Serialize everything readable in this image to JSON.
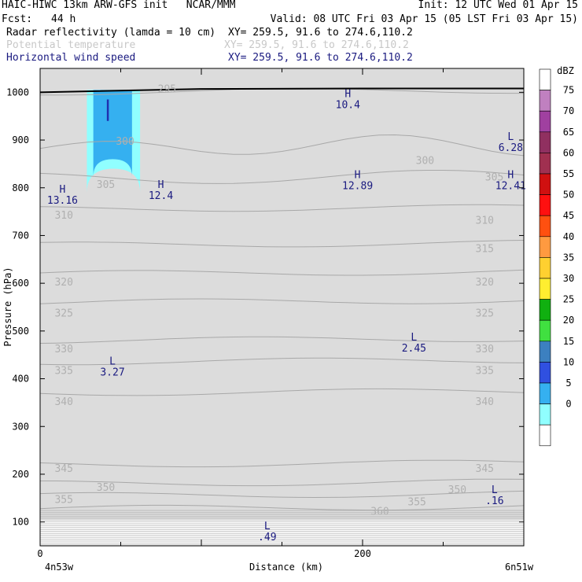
{
  "header": {
    "title_left": "HAIC-HIWC 13km ARW-GFS init   NCAR/MMM",
    "init": "Init: 12 UTC Wed 01 Apr 15",
    "fcst_label": "Fcst:",
    "fcst_value": "44 h",
    "valid": "Valid: 08 UTC Fri 03 Apr 15 (05 LST Fri 03 Apr 15)",
    "fields": [
      {
        "name": "Radar reflectivity (lamda = 10 cm)",
        "xy": "XY= 259.5, 91.6 to 274.6,110.2",
        "color": "#000000"
      },
      {
        "name": "Potential temperature",
        "xy": "XY= 259.5, 91.6 to 274.6,110.2",
        "color": "#c8c8c8"
      },
      {
        "name": "Horizontal wind speed",
        "xy": "XY= 259.5, 91.6 to 274.6,110.2",
        "color": "#1a1a80"
      }
    ]
  },
  "chart_data": {
    "type": "cross-section",
    "ylabel": "Pressure (hPa)",
    "xlabel": "Distance (km)",
    "x_start_label": "4n53w",
    "x_end_label": "6n51w",
    "xlim": [
      0,
      300
    ],
    "ylim": [
      1050,
      50
    ],
    "x_ticks": [
      0,
      200
    ],
    "y_ticks": [
      100,
      200,
      300,
      400,
      500,
      600,
      700,
      800,
      900,
      1000
    ],
    "colorbar": {
      "unit": "dBZ",
      "levels": [
        75,
        70,
        65,
        60,
        55,
        50,
        45,
        40,
        35,
        30,
        25,
        20,
        15,
        10,
        5,
        0
      ],
      "colors": [
        "#ffffff",
        "#c080c0",
        "#a040a0",
        "#903060",
        "#a03050",
        "#d01010",
        "#ff1010",
        "#ff5010",
        "#ff9a40",
        "#ffd030",
        "#ffee30",
        "#10b010",
        "#40e040",
        "#3c80c0",
        "#3050e0",
        "#35b0f0",
        "#90ffff",
        "#ffffff"
      ]
    },
    "theta_contours": [
      {
        "value": 360,
        "p": 128
      },
      {
        "value": 355,
        "p": 155
      },
      {
        "value": 350,
        "p": 180
      },
      {
        "value": 345,
        "p": 220
      },
      {
        "value": 340,
        "p": 370
      },
      {
        "value": 335,
        "p": 435
      },
      {
        "value": 330,
        "p": 480
      },
      {
        "value": 325,
        "p": 560
      },
      {
        "value": 320,
        "p": 620
      },
      {
        "value": 315,
        "p": 680
      },
      {
        "value": 310,
        "p": 755
      },
      {
        "value": 305,
        "p": 820
      },
      {
        "value": 300,
        "p": 885
      },
      {
        "value": 295,
        "p": 1000
      }
    ],
    "theta_labels": [
      {
        "text": "360",
        "x": 205,
        "p": 115
      },
      {
        "text": "355",
        "x": 9,
        "p": 140
      },
      {
        "text": "355",
        "x": 228,
        "p": 135
      },
      {
        "text": "350",
        "x": 35,
        "p": 165
      },
      {
        "text": "350",
        "x": 253,
        "p": 160
      },
      {
        "text": "345",
        "x": 9,
        "p": 205
      },
      {
        "text": "345",
        "x": 270,
        "p": 205
      },
      {
        "text": "340",
        "x": 9,
        "p": 345
      },
      {
        "text": "340",
        "x": 270,
        "p": 345
      },
      {
        "text": "335",
        "x": 9,
        "p": 410
      },
      {
        "text": "335",
        "x": 270,
        "p": 410
      },
      {
        "text": "330",
        "x": 9,
        "p": 455
      },
      {
        "text": "330",
        "x": 270,
        "p": 455
      },
      {
        "text": "325",
        "x": 9,
        "p": 530
      },
      {
        "text": "325",
        "x": 270,
        "p": 530
      },
      {
        "text": "320",
        "x": 9,
        "p": 595
      },
      {
        "text": "320",
        "x": 270,
        "p": 595
      },
      {
        "text": "315",
        "x": 270,
        "p": 665
      },
      {
        "text": "310",
        "x": 9,
        "p": 735
      },
      {
        "text": "310",
        "x": 270,
        "p": 725
      },
      {
        "text": "305",
        "x": 35,
        "p": 800
      },
      {
        "text": "305",
        "x": 276,
        "p": 815
      },
      {
        "text": "300",
        "x": 47,
        "p": 890
      },
      {
        "text": "300",
        "x": 233,
        "p": 850
      },
      {
        "text": "295",
        "x": 73,
        "p": 1000
      }
    ],
    "wind_labels": [
      {
        "letter": "L",
        "value": ".49",
        "x": 136,
        "p": 85
      },
      {
        "letter": "L",
        "value": ".16",
        "x": 277,
        "p": 160
      },
      {
        "letter": "L",
        "value": "3.27",
        "x": 40,
        "p": 430
      },
      {
        "letter": "L",
        "value": "2.45",
        "x": 227,
        "p": 480
      },
      {
        "letter": "H",
        "value": "13.16",
        "x": 9,
        "p": 790
      },
      {
        "letter": "H",
        "value": "12.4",
        "x": 70,
        "p": 800
      },
      {
        "letter": "H",
        "value": "12.89",
        "x": 192,
        "p": 820
      },
      {
        "letter": "H",
        "value": "12.41",
        "x": 287,
        "p": 820
      },
      {
        "letter": "L",
        "value": "6.28",
        "x": 287,
        "p": 900
      },
      {
        "letter": "H",
        "value": "10.4",
        "x": 186,
        "p": 990
      }
    ],
    "reflectivity": [
      {
        "dbz_min": 5,
        "color": "#90ffff",
        "x_range": [
          29,
          62
        ],
        "p_top": 840
      },
      {
        "dbz_min": 10,
        "color": "#35b0f0",
        "x_range": [
          33,
          57
        ],
        "p_top": 860
      }
    ],
    "wind_core": {
      "x": 42,
      "p_range": [
        940,
        985
      ],
      "color": "#2030b0"
    }
  }
}
